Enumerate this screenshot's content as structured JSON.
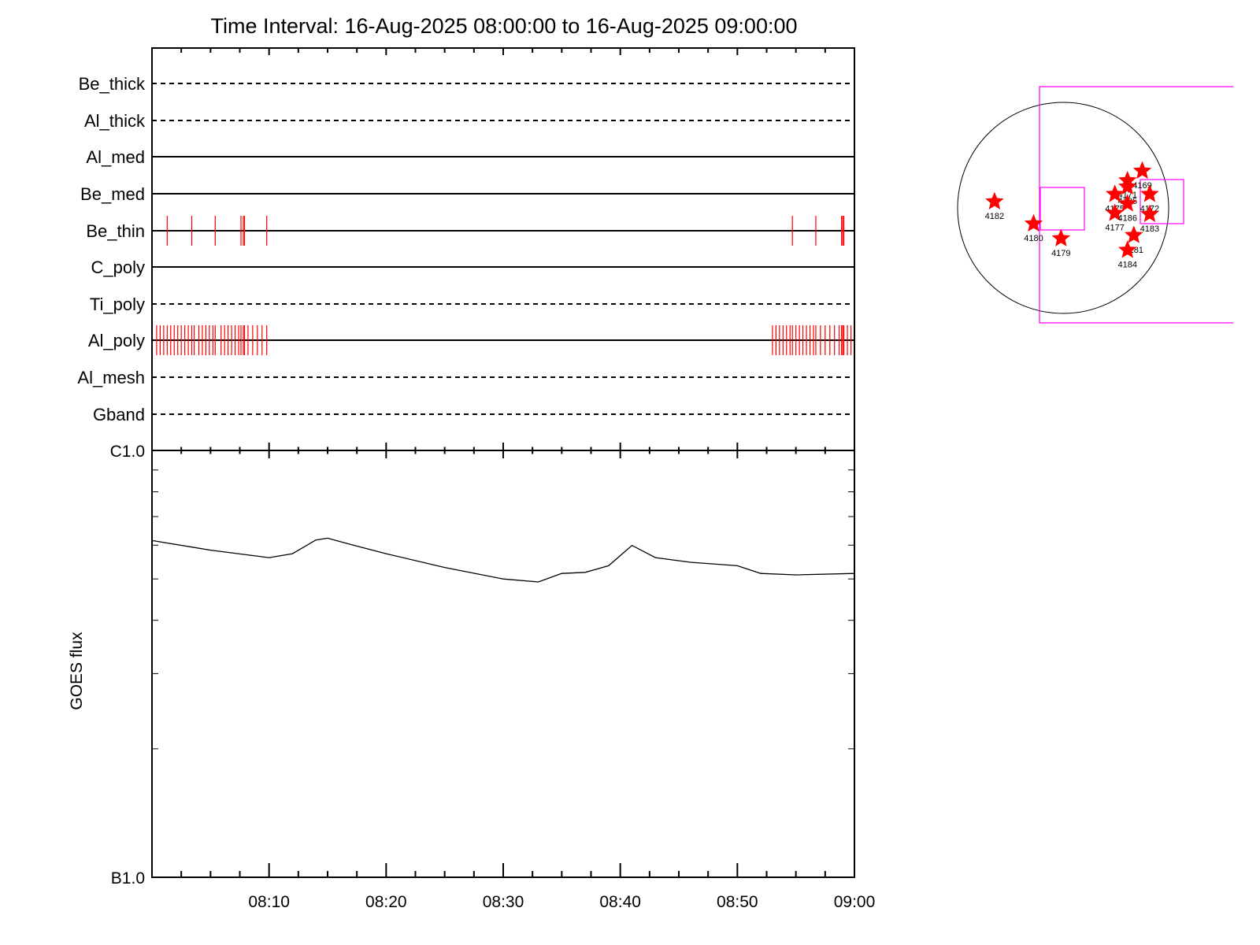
{
  "title": "Time Interval: 16-Aug-2025 08:00:00 to 16-Aug-2025 09:00:00",
  "timeline": {
    "channels": [
      {
        "label": "Be_thick",
        "style": "dashed",
        "events": []
      },
      {
        "label": "Al_thick",
        "style": "dashed",
        "events": []
      },
      {
        "label": "Al_med",
        "style": "solid",
        "events": []
      },
      {
        "label": "Be_med",
        "style": "solid",
        "events": []
      },
      {
        "label": "Be_thin",
        "style": "solid",
        "events": [
          1.3,
          3.4,
          5.4,
          7.6,
          7.8,
          7.9,
          9.8,
          54.7,
          56.7,
          58.9,
          59.0,
          59.1
        ]
      },
      {
        "label": "C_poly",
        "style": "solid",
        "events": []
      },
      {
        "label": "Ti_poly",
        "style": "dashed",
        "events": []
      },
      {
        "label": "Al_poly",
        "style": "solid",
        "events": [
          0.4,
          0.7,
          1.0,
          1.3,
          1.6,
          1.9,
          2.2,
          2.5,
          2.8,
          3.1,
          3.4,
          3.6,
          4.0,
          4.3,
          4.6,
          4.9,
          5.2,
          5.4,
          5.9,
          6.2,
          6.5,
          6.8,
          7.1,
          7.4,
          7.6,
          7.8,
          7.9,
          8.2,
          8.6,
          9.0,
          9.4,
          9.8,
          53.0,
          53.3,
          53.6,
          53.9,
          54.2,
          54.5,
          54.7,
          55.0,
          55.3,
          55.6,
          55.9,
          56.2,
          56.5,
          56.7,
          57.1,
          57.5,
          57.9,
          58.3,
          58.7,
          58.9,
          59.0,
          59.1,
          59.4,
          59.7
        ]
      },
      {
        "label": "Al_mesh",
        "style": "dashed",
        "events": []
      },
      {
        "label": "Gband",
        "style": "dashed",
        "events": []
      }
    ]
  },
  "chart_data": {
    "type": "line",
    "xlabel": "",
    "ylabel": "GOES flux",
    "y_scale": "log",
    "ylim": [
      1e-07,
      1e-06
    ],
    "y_tick_labels": [
      "C1.0",
      "B1.0"
    ],
    "x_tick_labels": [
      "08:10",
      "08:20",
      "08:30",
      "08:40",
      "08:50",
      "09:00"
    ],
    "x_range_minutes": [
      0,
      60
    ],
    "series": [
      {
        "x": [
          0,
          5,
          10,
          12,
          14,
          15,
          17,
          20,
          25,
          30,
          33,
          35,
          37,
          39,
          41,
          43,
          46,
          50,
          52,
          55,
          60
        ],
        "y": [
          6.15e-07,
          5.84e-07,
          5.61e-07,
          5.73e-07,
          6.17e-07,
          6.23e-07,
          6.02e-07,
          5.73e-07,
          5.32e-07,
          5e-07,
          4.92e-07,
          5.15e-07,
          5.18e-07,
          5.37e-07,
          5.99e-07,
          5.61e-07,
          5.47e-07,
          5.37e-07,
          5.15e-07,
          5.11e-07,
          5.15e-07
        ],
        "color": "#000000"
      }
    ],
    "event_color": "#ff0000"
  },
  "solar_map": {
    "disk_color": "#000000",
    "box_color": "#ff00ff",
    "star_color": "#ff0000",
    "regions": [
      {
        "label": "4169",
        "lon": 0.75,
        "lat": 0.35
      },
      {
        "label": "4171",
        "lon": 0.61,
        "lat": 0.26
      },
      {
        "label": "4185",
        "lon": 0.61,
        "lat": 0.2
      },
      {
        "label": "4175",
        "lon": 0.49,
        "lat": 0.13
      },
      {
        "label": "4177",
        "lon": 0.49,
        "lat": -0.05
      },
      {
        "label": "4186",
        "lon": 0.61,
        "lat": 0.04
      },
      {
        "label": "4172",
        "lon": 0.82,
        "lat": 0.13
      },
      {
        "label": "4183",
        "lon": 0.82,
        "lat": -0.06
      },
      {
        "label": "4181",
        "lon": 0.67,
        "lat": -0.26
      },
      {
        "label": "4184",
        "lon": 0.61,
        "lat": -0.4
      },
      {
        "label": "4182",
        "lon": -0.65,
        "lat": 0.06
      },
      {
        "label": "4180",
        "lon": -0.28,
        "lat": -0.15
      },
      {
        "label": "4179",
        "lon": -0.02,
        "lat": -0.29
      }
    ]
  }
}
